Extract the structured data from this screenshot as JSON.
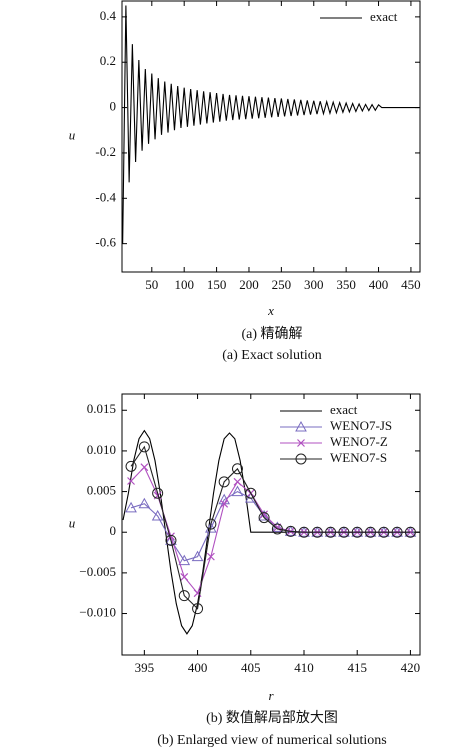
{
  "chart_data": [
    {
      "type": "line",
      "xlabel": "x",
      "ylabel": "u",
      "legend": "upper right",
      "caption_zh": "(a) 精确解",
      "caption_en": "(a) Exact solution",
      "xlim": [
        4,
        464
      ],
      "ylim": [
        -0.725,
        0.47
      ],
      "xticks": [
        50,
        100,
        150,
        200,
        250,
        300,
        350,
        400,
        450
      ],
      "yticks": [
        -0.6,
        -0.4,
        -0.2,
        0,
        0.2,
        0.4
      ],
      "series": [
        {
          "name": "exact",
          "color": "#000000",
          "x": [
            5,
            10,
            15,
            20,
            25,
            30,
            35,
            40,
            45,
            50,
            55,
            60,
            65,
            70,
            75,
            80,
            85,
            90,
            95,
            100,
            105,
            110,
            115,
            120,
            125,
            130,
            135,
            140,
            145,
            150,
            155,
            160,
            165,
            170,
            175,
            180,
            185,
            190,
            195,
            200,
            205,
            210,
            215,
            220,
            225,
            230,
            235,
            240,
            245,
            250,
            255,
            260,
            265,
            270,
            275,
            280,
            285,
            290,
            295,
            300,
            305,
            310,
            315,
            320,
            325,
            330,
            335,
            340,
            345,
            350,
            355,
            360,
            365,
            370,
            375,
            380,
            385,
            390,
            395,
            400,
            405,
            463
          ],
          "values": [
            -0.6,
            0.45,
            -0.33,
            0.28,
            -0.24,
            0.21,
            -0.19,
            0.17,
            -0.16,
            0.15,
            -0.14,
            0.13,
            -0.12,
            0.115,
            -0.11,
            0.105,
            -0.1,
            0.095,
            -0.09,
            0.088,
            -0.085,
            0.082,
            -0.08,
            0.077,
            -0.075,
            0.072,
            -0.07,
            0.068,
            -0.066,
            0.064,
            -0.062,
            0.06,
            -0.058,
            0.056,
            -0.055,
            0.054,
            -0.053,
            0.052,
            -0.051,
            0.05,
            -0.049,
            0.048,
            -0.047,
            0.046,
            -0.045,
            0.044,
            -0.043,
            0.042,
            -0.041,
            0.04,
            -0.039,
            0.038,
            -0.037,
            0.036,
            -0.035,
            0.034,
            -0.033,
            0.032,
            -0.031,
            0.03,
            -0.029,
            0.028,
            -0.027,
            0.026,
            -0.025,
            0.024,
            -0.023,
            0.022,
            -0.021,
            0.02,
            -0.019,
            0.018,
            -0.017,
            0.016,
            -0.015,
            0.014,
            -0.013,
            0.013,
            -0.012,
            0.012,
            0,
            0
          ]
        }
      ]
    },
    {
      "type": "line",
      "xlabel": "r",
      "ylabel": "u",
      "legend": "upper right",
      "caption_zh": "(b) 数值解局部放大图",
      "caption_en": "(b) Enlarged view of numerical solutions",
      "xlim": [
        392.9,
        420.9
      ],
      "ylim": [
        -0.0151,
        0.017
      ],
      "xticks": [
        395,
        400,
        405,
        410,
        415,
        420
      ],
      "yticks": [
        {
          "value": -0.01,
          "label": "−0.010"
        },
        {
          "value": -0.005,
          "label": "−0.005"
        },
        0,
        0.005,
        {
          "value": 0.01,
          "label": "0.010"
        },
        0.015
      ],
      "series": [
        {
          "name": "exact",
          "color": "#000000",
          "x": [
            393,
            393.5,
            394,
            394.5,
            395,
            395.5,
            396,
            396.5,
            397,
            397.5,
            398,
            398.5,
            399,
            399.5,
            400,
            400.5,
            401,
            401.5,
            402,
            402.5,
            403,
            403.5,
            404,
            404.5,
            405,
            420.9
          ],
          "values": [
            0.0015,
            0.0048,
            0.0088,
            0.0115,
            0.0125,
            0.0115,
            0.0088,
            0.0048,
            0,
            -0.0048,
            -0.0088,
            -0.0115,
            -0.0125,
            -0.0115,
            -0.0088,
            -0.0048,
            0,
            0.0048,
            0.0088,
            0.0115,
            0.0122,
            0.0115,
            0.0088,
            0.0048,
            0,
            0
          ]
        },
        {
          "name": "WENO7-JS",
          "color": "#7a6cc0",
          "marker": "triangle",
          "x": [
            393.75,
            395,
            396.25,
            397.5,
            398.75,
            400,
            401.25,
            402.5,
            403.75,
            405,
            406.25,
            407.5,
            408.75,
            410,
            411.25,
            412.5,
            413.75,
            415,
            416.25,
            417.5,
            418.75,
            420
          ],
          "values": [
            0.003,
            0.0035,
            0.002,
            -0.001,
            -0.0035,
            -0.003,
            0.0005,
            0.004,
            0.005,
            0.0042,
            0.002,
            0.0006,
            0.0001,
            0,
            0,
            0,
            0,
            0,
            0,
            0,
            0,
            0
          ]
        },
        {
          "name": "WENO7-Z",
          "color": "#b050c0",
          "marker": "x",
          "x": [
            393.75,
            395,
            396.25,
            397.5,
            398.75,
            400,
            401.25,
            402.5,
            403.75,
            405,
            406.25,
            407.5,
            408.75,
            410,
            411.25,
            412.5,
            413.75,
            415,
            416.25,
            417.5,
            418.75,
            420
          ],
          "values": [
            0.0063,
            0.008,
            0.0045,
            -0.0005,
            -0.0055,
            -0.0075,
            -0.003,
            0.0035,
            0.0062,
            0.0048,
            0.0022,
            0.0006,
            0.0001,
            0,
            0,
            0,
            0,
            0,
            0,
            0,
            0,
            0
          ]
        },
        {
          "name": "WENO7-S",
          "color": "#222222",
          "marker": "circle",
          "x": [
            393.75,
            395,
            396.25,
            397.5,
            398.75,
            400,
            401.25,
            402.5,
            403.75,
            405,
            406.25,
            407.5,
            408.75,
            410,
            411.25,
            412.5,
            413.75,
            415,
            416.25,
            417.5,
            418.75,
            420
          ],
          "values": [
            0.0081,
            0.0105,
            0.0048,
            -0.001,
            -0.0078,
            -0.0094,
            0.001,
            0.0062,
            0.0078,
            0.0048,
            0.0018,
            0.0004,
            0.0001,
            0,
            0,
            0,
            0,
            0,
            0,
            0,
            0,
            0
          ]
        }
      ]
    }
  ]
}
